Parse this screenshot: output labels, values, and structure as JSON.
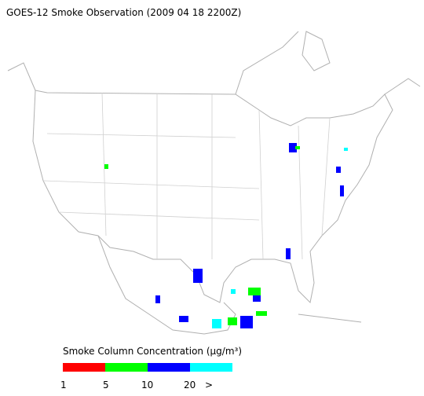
{
  "header": {
    "title": "GOES-12 Smoke Observation (2009 04 18  2200Z)"
  },
  "legend": {
    "title": "Smoke Column Concentration (μg/m³)",
    "colors": [
      "#ff0000",
      "#00ff00",
      "#0000ff",
      "#00ffff"
    ],
    "labels": [
      "1",
      "5",
      "10",
      "20",
      ">"
    ]
  }
}
